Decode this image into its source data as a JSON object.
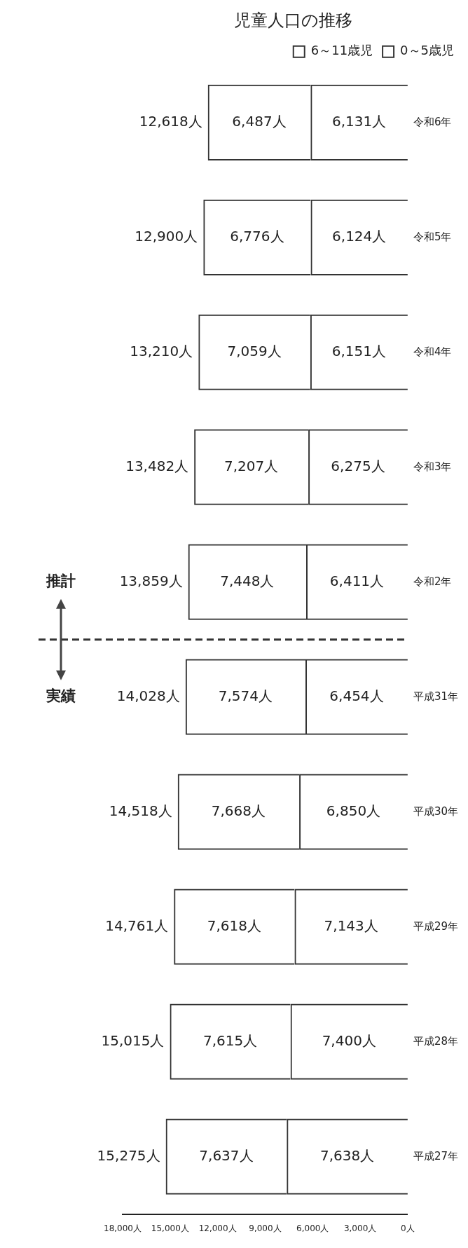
{
  "chart_data": {
    "type": "bar",
    "title": "児童人口の推移",
    "stacked": true,
    "orientation": "horizontal",
    "legend": "top right",
    "grid": false,
    "categories": [
      "令和6年",
      "令和5年",
      "令和4年",
      "令和3年",
      "令和2年",
      "平成31年",
      "平成30年",
      "平成29年",
      "平成28年",
      "平成27年"
    ],
    "series": [
      {
        "name": "0～5歳児",
        "color": "#333333",
        "values": [
          6131,
          6124,
          6151,
          6275,
          6411,
          6454,
          6850,
          7143,
          7400,
          7638
        ],
        "value_labels": [
          "6,131人",
          "6,124人",
          "6,151人",
          "6,275人",
          "6,411人",
          "6,454人",
          "6,850人",
          "7,143人",
          "7,400人",
          "7,638人"
        ]
      },
      {
        "name": "6～11歳児",
        "color": "#333333",
        "values": [
          6487,
          6776,
          7059,
          7207,
          7448,
          7574,
          7668,
          7618,
          7615,
          7637
        ],
        "value_labels": [
          "6,487人",
          "6,776人",
          "7,059人",
          "7,207人",
          "7,448人",
          "7,574人",
          "7,668人",
          "7,618人",
          "7,615人",
          "7,637人"
        ]
      }
    ],
    "totals": [
      "12,618人",
      "12,900人",
      "13,210人",
      "13,482人",
      "13,859人",
      "14,028人",
      "14,518人",
      "14,761人",
      "15,015人",
      "15,275人"
    ],
    "xlim": [
      18000,
      0
    ],
    "xticks": [
      {
        "value": 0,
        "label": "0人"
      },
      {
        "value": 3000,
        "label": "3,000人"
      },
      {
        "value": 6000,
        "label": "6,000人"
      },
      {
        "value": 9000,
        "label": "9,000人"
      },
      {
        "value": 12000,
        "label": "12,000人"
      },
      {
        "value": 15000,
        "label": "15,000人"
      },
      {
        "value": 18000,
        "label": "18,000人"
      }
    ],
    "annotations": [
      "推計",
      "実績"
    ]
  }
}
